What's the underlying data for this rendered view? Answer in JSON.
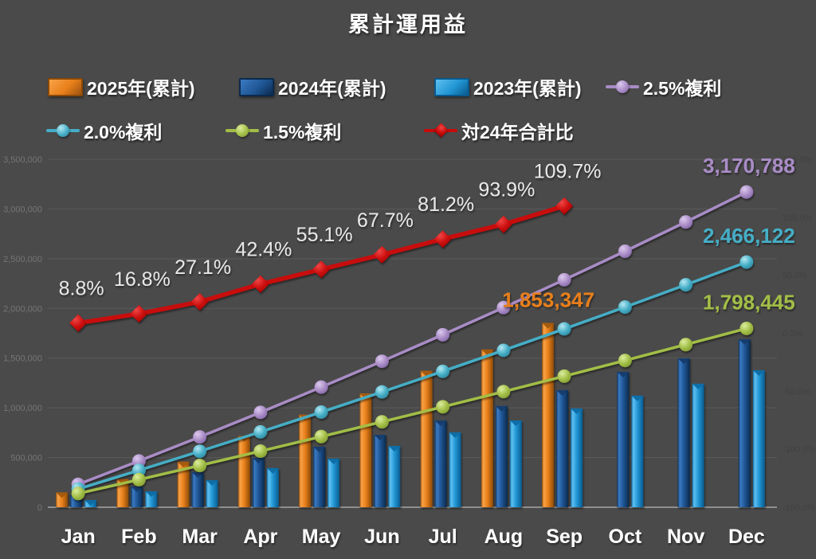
{
  "title": "累計運用益",
  "legend": {
    "items": [
      {
        "label": "2025年(累計)",
        "swatch": "bar",
        "color_key": "orange"
      },
      {
        "label": "2024年(累計)",
        "swatch": "bar",
        "color_key": "darkblue"
      },
      {
        "label": "2023年(累計)",
        "swatch": "bar",
        "color_key": "lightblue"
      },
      {
        "label": "2.5%複利",
        "swatch": "line-circle",
        "color_key": "purple"
      },
      {
        "label": "2.0%複利",
        "swatch": "line-circle",
        "color_key": "teal"
      },
      {
        "label": "1.5%複利",
        "swatch": "line-circle",
        "color_key": "green"
      },
      {
        "label": "対24年合計比",
        "swatch": "line-diamond",
        "color_key": "red"
      }
    ]
  },
  "colors": {
    "background": "#4A4A4A",
    "orange": "#E87F1A",
    "darkblue": "#1F5695",
    "lightblue": "#2196D4",
    "purple": "#A98CC6",
    "teal": "#45AEC6",
    "green": "#A2BE46",
    "red": "#C80A0A",
    "grid": "#5A5A5A",
    "axis_line": "#8F8F8F",
    "left_axis_label": "#757575",
    "right_axis_label": "#414141",
    "text": "#FFFFFF",
    "pct_label": "#E8E8E8"
  },
  "chart_data": {
    "type": "combo-bar-line",
    "categories": [
      "Jan",
      "Feb",
      "Mar",
      "Apr",
      "May",
      "Jun",
      "Jul",
      "Aug",
      "Sep",
      "Oct",
      "Nov",
      "Dec"
    ],
    "bar_series": [
      {
        "name": "2025年(累計)",
        "color_key": "orange",
        "axis": "left",
        "values": [
          148673,
          283831,
          457846,
          716335,
          930897,
          1143771,
          1371849,
          1586411,
          1853347,
          null,
          null,
          null
        ]
      },
      {
        "name": "2024年(累計)",
        "color_key": "darkblue",
        "axis": "left",
        "values": [
          120000,
          208000,
          353000,
          497000,
          609000,
          729000,
          873000,
          1018000,
          1178000,
          1362000,
          1498000,
          1689469
        ]
      },
      {
        "name": "2023年(累計)",
        "color_key": "lightblue",
        "axis": "left",
        "values": [
          72000,
          160000,
          272000,
          393000,
          489000,
          617000,
          753000,
          873000,
          993000,
          1122000,
          1242000,
          1378000
        ]
      }
    ],
    "line_series": [
      {
        "name": "2.5%複利",
        "color_key": "purple",
        "marker": "circle",
        "axis": "left",
        "values": [
          229843,
          465432,
          706910,
          954426,
          1208130,
          1468176,
          1734723,
          2007934,
          2287975,
          2575016,
          2869229,
          3170788
        ]
      },
      {
        "name": "2.0%複利",
        "color_key": "teal",
        "marker": "circle",
        "axis": "left",
        "values": [
          183874,
          371426,
          562729,
          757858,
          956889,
          1159901,
          1366973,
          1578187,
          1793625,
          2013372,
          2237513,
          2466122
        ]
      },
      {
        "name": "1.5%複利",
        "color_key": "green",
        "marker": "circle",
        "axis": "left",
        "values": [
          137906,
          277880,
          419953,
          564158,
          710525,
          859088,
          1009884,
          1162947,
          1318316,
          1476026,
          1636101,
          1798445
        ]
      },
      {
        "name": "対24年合計比",
        "color_key": "red",
        "marker": "diamond",
        "axis": "right",
        "values": [
          8.8,
          16.8,
          27.1,
          42.4,
          55.1,
          67.7,
          81.2,
          93.9,
          109.7,
          null,
          null,
          null
        ]
      }
    ],
    "ratio_labels": [
      "8.8%",
      "16.8%",
      "27.1%",
      "42.4%",
      "55.1%",
      "67.7%",
      "81.2%",
      "93.9%",
      "109.7%"
    ],
    "end_labels": [
      {
        "text": "1,853,347",
        "color_key": "orange",
        "month_index": 8,
        "value": 1853347
      },
      {
        "text": "3,170,788",
        "color_key": "purple",
        "month_index": 11,
        "value": 3170788
      },
      {
        "text": "2,466,122",
        "color_key": "teal",
        "month_index": 11,
        "value": 2466122
      },
      {
        "text": "1,798,445",
        "color_key": "green",
        "month_index": 11,
        "value": 1798445
      }
    ],
    "left_axis": {
      "min": 0,
      "max": 3500000,
      "step": 500000,
      "tick_labels": [
        "0",
        "500,000",
        "1,000,000",
        "1,500,000",
        "2,000,000",
        "2,500,000",
        "3,000,000",
        "3,500,000"
      ]
    },
    "right_axis": {
      "min": -150,
      "max": 150,
      "step": 50,
      "tick_labels": [
        "-150.0%",
        "-100.0%",
        "-50.0%",
        "0.0%",
        "50.0%",
        "100.0%",
        "150.0%"
      ]
    },
    "grid": true,
    "legend_position": "top"
  }
}
